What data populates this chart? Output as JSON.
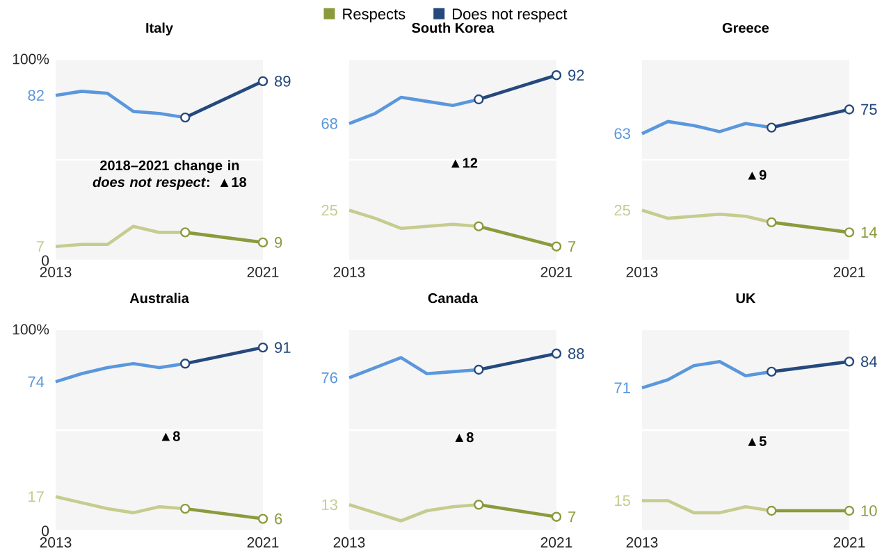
{
  "chart_data": [
    {
      "type": "line",
      "title": "Italy",
      "xlim": [
        2013,
        2021
      ],
      "ylim": [
        0,
        100
      ],
      "xticks": [
        2013,
        2021
      ],
      "yticks": [
        0,
        {
          "value": 50,
          "label": null
        },
        {
          "value": 100,
          "label": "100%"
        }
      ],
      "grid": "y",
      "legend": "top",
      "annotations": [
        "2018–2021 change in *does not respect*: ▲18"
      ],
      "series": [
        {
          "color": "#5a97dc",
          "x": [
            2013,
            2014,
            2015,
            2016,
            2017,
            2018
          ],
          "values": [
            82,
            84,
            83,
            74,
            73,
            71
          ],
          "value_labels": [
            "82",
            null,
            null,
            null,
            null,
            null
          ]
        },
        {
          "name": "Does not respect",
          "color": "#25497c",
          "marker": "circle",
          "x": [
            2018,
            2021
          ],
          "values": [
            71,
            89
          ],
          "value_labels": [
            null,
            "89"
          ]
        },
        {
          "color": "#c6cc8f",
          "x": [
            2013,
            2014,
            2015,
            2016,
            2017,
            2018
          ],
          "values": [
            7,
            8,
            8,
            17,
            14,
            14
          ],
          "value_labels": [
            "7",
            null,
            null,
            null,
            null,
            null
          ]
        },
        {
          "name": "Respects",
          "color": "#8c9a3e",
          "marker": "circle",
          "x": [
            2018,
            2021
          ],
          "values": [
            14,
            9
          ],
          "value_labels": [
            null,
            "9"
          ]
        }
      ]
    },
    {
      "type": "line",
      "title": "South Korea",
      "xlim": [
        2013,
        2021
      ],
      "ylim": [
        0,
        100
      ],
      "xticks": [
        2013,
        2021
      ],
      "yticks": [
        {
          "value": 0,
          "label": null
        },
        {
          "value": 50,
          "label": null
        },
        {
          "value": 100,
          "label": null
        }
      ],
      "grid": "y",
      "tick_labels": "x",
      "annotations": [
        "▲12"
      ],
      "series": [
        {
          "color": "#5a97dc",
          "x": [
            2013,
            2014,
            2015,
            2016,
            2017,
            2018
          ],
          "values": [
            68,
            73,
            81,
            79,
            77,
            80
          ],
          "value_labels": [
            "68",
            null,
            null,
            null,
            null,
            null
          ]
        },
        {
          "color": "#25497c",
          "marker": "circle",
          "x": [
            2018,
            2021
          ],
          "values": [
            80,
            92
          ],
          "value_labels": [
            null,
            "92"
          ]
        },
        {
          "color": "#c6cc8f",
          "x": [
            2013,
            2014,
            2015,
            2016,
            2017,
            2018
          ],
          "values": [
            25,
            21,
            16,
            17,
            18,
            17
          ],
          "value_labels": [
            "25",
            null,
            null,
            null,
            null,
            null
          ]
        },
        {
          "color": "#8c9a3e",
          "marker": "circle",
          "x": [
            2018,
            2021
          ],
          "values": [
            17,
            7
          ],
          "value_labels": [
            null,
            "7"
          ]
        }
      ]
    },
    {
      "type": "line",
      "title": "Greece",
      "xlim": [
        2013,
        2021
      ],
      "ylim": [
        0,
        100
      ],
      "xticks": [
        2013,
        2021
      ],
      "yticks": [
        {
          "value": 0,
          "label": null
        },
        {
          "value": 50,
          "label": null
        },
        {
          "value": 100,
          "label": null
        }
      ],
      "grid": "y",
      "tick_labels": "x",
      "annotations": [
        "▲9"
      ],
      "series": [
        {
          "color": "#5a97dc",
          "x": [
            2013,
            2014,
            2015,
            2016,
            2017,
            2018
          ],
          "values": [
            63,
            69,
            67,
            64,
            68,
            66
          ],
          "value_labels": [
            "63",
            null,
            null,
            null,
            null,
            null
          ]
        },
        {
          "color": "#25497c",
          "marker": "circle",
          "x": [
            2018,
            2021
          ],
          "values": [
            66,
            75
          ],
          "value_labels": [
            null,
            "75"
          ]
        },
        {
          "color": "#c6cc8f",
          "x": [
            2013,
            2014,
            2015,
            2016,
            2017,
            2018
          ],
          "values": [
            25,
            21,
            22,
            23,
            22,
            19
          ],
          "value_labels": [
            "25",
            null,
            null,
            null,
            null,
            null
          ]
        },
        {
          "color": "#8c9a3e",
          "marker": "circle",
          "x": [
            2018,
            2021
          ],
          "values": [
            19,
            14
          ],
          "value_labels": [
            null,
            "14"
          ]
        }
      ]
    },
    {
      "type": "line",
      "title": "Australia",
      "xlim": [
        2013,
        2021
      ],
      "ylim": [
        0,
        100
      ],
      "xticks": [
        2013,
        2021
      ],
      "yticks": [
        0,
        {
          "value": 50,
          "label": null
        },
        {
          "value": 100,
          "label": "100%"
        }
      ],
      "grid": "y",
      "annotations": [
        "▲8"
      ],
      "series": [
        {
          "color": "#5a97dc",
          "x": [
            2013,
            2014,
            2015,
            2016,
            2017,
            2018
          ],
          "values": [
            74,
            78,
            81,
            83,
            81,
            83
          ],
          "value_labels": [
            "74",
            null,
            null,
            null,
            null,
            null
          ]
        },
        {
          "color": "#25497c",
          "marker": "circle",
          "x": [
            2018,
            2021
          ],
          "values": [
            83,
            91
          ],
          "value_labels": [
            null,
            "91"
          ]
        },
        {
          "color": "#c6cc8f",
          "x": [
            2013,
            2014,
            2015,
            2016,
            2017,
            2018
          ],
          "values": [
            17,
            14,
            11,
            9,
            12,
            11
          ],
          "value_labels": [
            "17",
            null,
            null,
            null,
            null,
            null
          ]
        },
        {
          "color": "#8c9a3e",
          "marker": "circle",
          "x": [
            2018,
            2021
          ],
          "values": [
            11,
            6
          ],
          "value_labels": [
            null,
            "6"
          ]
        }
      ]
    },
    {
      "type": "line",
      "title": "Canada",
      "xlim": [
        2013,
        2021
      ],
      "ylim": [
        0,
        100
      ],
      "xticks": [
        2013,
        2021
      ],
      "yticks": [
        {
          "value": 0,
          "label": null
        },
        {
          "value": 50,
          "label": null
        },
        {
          "value": 100,
          "label": null
        }
      ],
      "grid": "y",
      "tick_labels": "x",
      "annotations": [
        "▲8"
      ],
      "series": [
        {
          "color": "#5a97dc",
          "x": [
            2013,
            2014,
            2015,
            2016,
            2017,
            2018
          ],
          "values": [
            76,
            81,
            86,
            78,
            79,
            80
          ],
          "value_labels": [
            "76",
            null,
            null,
            null,
            null,
            null
          ]
        },
        {
          "color": "#25497c",
          "marker": "circle",
          "x": [
            2018,
            2021
          ],
          "values": [
            80,
            88
          ],
          "value_labels": [
            null,
            "88"
          ]
        },
        {
          "color": "#c6cc8f",
          "x": [
            2013,
            2014,
            2015,
            2016,
            2017,
            2018
          ],
          "values": [
            13,
            9,
            5,
            10,
            12,
            13
          ],
          "value_labels": [
            "13",
            null,
            null,
            null,
            null,
            null
          ]
        },
        {
          "color": "#8c9a3e",
          "marker": "circle",
          "x": [
            2018,
            2021
          ],
          "values": [
            13,
            7
          ],
          "value_labels": [
            null,
            "7"
          ]
        }
      ]
    },
    {
      "type": "line",
      "title": "UK",
      "xlim": [
        2013,
        2021
      ],
      "ylim": [
        0,
        100
      ],
      "xticks": [
        2013,
        2021
      ],
      "yticks": [
        {
          "value": 0,
          "label": null
        },
        {
          "value": 50,
          "label": null
        },
        {
          "value": 100,
          "label": null
        }
      ],
      "grid": "y",
      "tick_labels": "x",
      "annotations": [
        "▲5"
      ],
      "series": [
        {
          "color": "#5a97dc",
          "x": [
            2013,
            2014,
            2015,
            2016,
            2017,
            2018
          ],
          "values": [
            71,
            75,
            82,
            84,
            77,
            79
          ],
          "value_labels": [
            "71",
            null,
            null,
            null,
            null,
            null
          ]
        },
        {
          "color": "#25497c",
          "marker": "circle",
          "x": [
            2018,
            2021
          ],
          "values": [
            79,
            84
          ],
          "value_labels": [
            null,
            "84"
          ]
        },
        {
          "color": "#c6cc8f",
          "x": [
            2013,
            2014,
            2015,
            2016,
            2017,
            2018
          ],
          "values": [
            15,
            15,
            9,
            9,
            12,
            10
          ],
          "value_labels": [
            "15",
            null,
            null,
            null,
            null,
            null
          ]
        },
        {
          "color": "#8c9a3e",
          "marker": "circle",
          "x": [
            2018,
            2021
          ],
          "values": [
            10,
            10
          ],
          "value_labels": [
            null,
            "10"
          ]
        }
      ]
    }
  ]
}
